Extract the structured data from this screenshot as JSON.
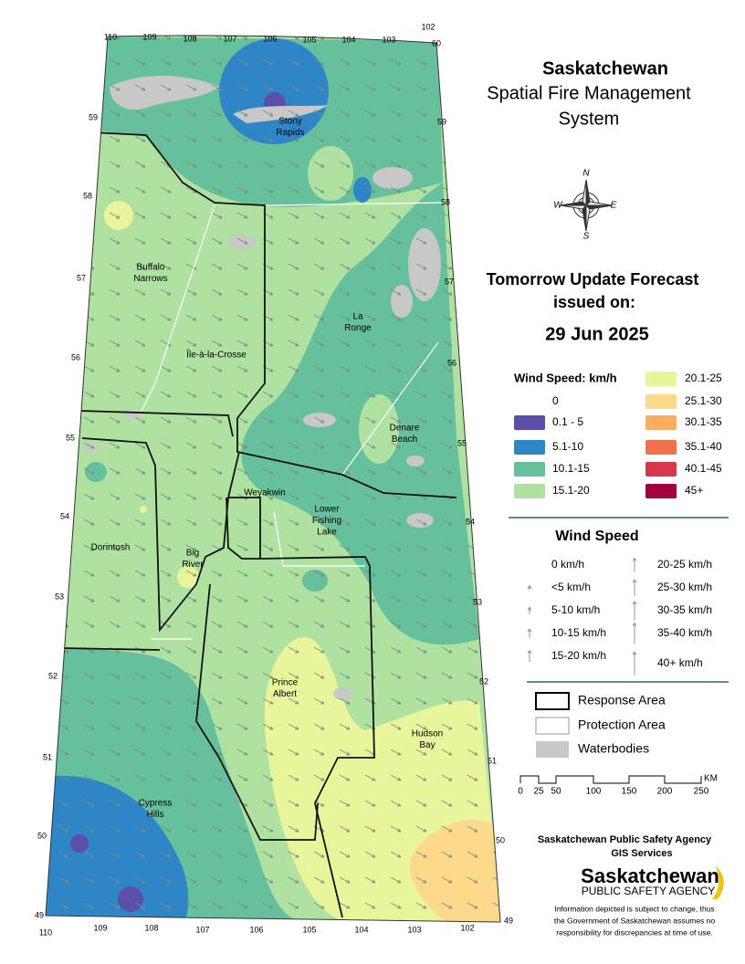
{
  "title": [
    "Saskatchewan",
    "Spatial Fire Management",
    "System"
  ],
  "forecast": {
    "heading": [
      "Tomorrow Update Forecast",
      "issued on:"
    ],
    "date": "29 Jun 2025"
  },
  "compass": [
    "N",
    "E",
    "S",
    "W"
  ],
  "wind_legend": {
    "title": "Wind Speed: km/h",
    "classes": [
      {
        "label": "0",
        "color": "#ffffff"
      },
      {
        "label": "0.1 - 5",
        "color": "#5b4fa8"
      },
      {
        "label": "5.1-10",
        "color": "#2f86c6"
      },
      {
        "label": "10.1-15",
        "color": "#66c09c"
      },
      {
        "label": "15.1-20",
        "color": "#afe1a1"
      },
      {
        "label": "20.1-25",
        "color": "#e8f59b"
      },
      {
        "label": "25.1-30",
        "color": "#fcd98b"
      },
      {
        "label": "30.1-35",
        "color": "#f9ad5e"
      },
      {
        "label": "35.1-40",
        "color": "#f2714c"
      },
      {
        "label": "40.1-45",
        "color": "#d8374b"
      },
      {
        "label": "45+",
        "color": "#a3013f"
      }
    ]
  },
  "arrow_legend": {
    "title": "Wind Speed",
    "items": [
      "0 km/h",
      "<5 km/h",
      "5-10 km/h",
      "10-15 km/h",
      "15-20 km/h",
      "20-25 km/h",
      "25-30 km/h",
      "30-35 km/h",
      "35-40 km/h",
      "40+ km/h"
    ]
  },
  "boundaries": [
    "Response Area",
    "Protection Area",
    "Waterbodies"
  ],
  "scale": {
    "labels": [
      "0",
      "25",
      "50",
      "100",
      "150",
      "200",
      "250"
    ],
    "unit": "KM"
  },
  "agency": {
    "name": "Saskatchewan Public Safety Agency",
    "unit": "GIS  Services",
    "logo": [
      "Saskatchewan",
      "PUBLIC SAFETY AGENCY"
    ],
    "disclaimer": [
      "Information depicted is subject to change, thus",
      "the Government of Saskatchewan assumes no",
      "responsibility for discrepancies at time of use."
    ]
  },
  "map": {
    "top_labels": [
      "110",
      "109",
      "108",
      "107",
      "106",
      "105",
      "104",
      "103",
      "102",
      "60"
    ],
    "bottom_labels": [
      "49",
      "110",
      "109",
      "108",
      "107",
      "106",
      "105",
      "104",
      "103",
      "102",
      "49"
    ],
    "left_labels": [
      "59",
      "58",
      "57",
      "56",
      "55",
      "54",
      "53",
      "52",
      "51",
      "50"
    ],
    "right_labels": [
      "59",
      "58",
      "57",
      "56",
      "55",
      "54",
      "53",
      "52",
      "51",
      "50"
    ],
    "places": [
      [
        "Stony",
        "Rapids"
      ],
      [
        "Buffalo",
        "Narrows"
      ],
      [
        "La",
        "Ronge"
      ],
      [
        "Île-à-la-Crosse"
      ],
      [
        "Denare",
        "Beach"
      ],
      [
        "Weyakwin"
      ],
      [
        "Lower",
        "Fishing",
        "Lake"
      ],
      [
        "Dorintosh"
      ],
      [
        "Big",
        "River"
      ],
      [
        "Prince",
        "Albert"
      ],
      [
        "Hudson",
        "Bay"
      ],
      [
        "Cypress",
        "Hills"
      ]
    ]
  }
}
